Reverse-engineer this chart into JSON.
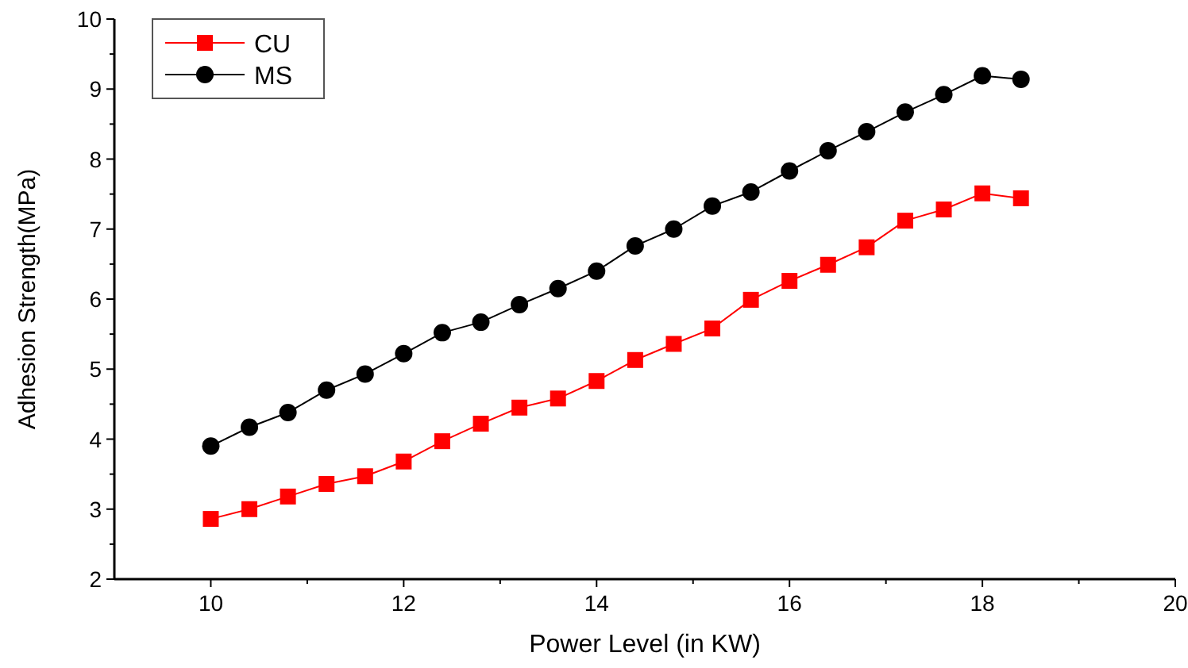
{
  "chart_data": {
    "type": "line",
    "xlabel": "Power Level (in KW)",
    "ylabel": "Adhesion Strength(MPa)",
    "x": [
      10,
      10.4,
      10.8,
      11.2,
      11.6,
      12,
      12.4,
      12.8,
      13.2,
      13.6,
      14,
      14.4,
      14.8,
      15.2,
      15.6,
      16,
      16.4,
      16.8,
      17.2,
      17.6,
      18,
      18.4
    ],
    "series": [
      {
        "name": "CU",
        "color": "#ff0000",
        "marker": "square",
        "values": [
          2.86,
          3.0,
          3.18,
          3.36,
          3.47,
          3.68,
          3.97,
          4.22,
          4.45,
          4.58,
          4.83,
          5.13,
          5.36,
          5.58,
          5.99,
          6.26,
          6.49,
          6.74,
          7.12,
          7.28,
          7.51,
          7.44
        ]
      },
      {
        "name": "MS",
        "color": "#000000",
        "marker": "circle",
        "values": [
          3.9,
          4.17,
          4.38,
          4.7,
          4.93,
          5.22,
          5.52,
          5.67,
          5.92,
          6.15,
          6.4,
          6.76,
          7.0,
          7.33,
          7.53,
          7.83,
          8.12,
          8.39,
          8.67,
          8.92,
          9.19,
          9.14
        ]
      }
    ],
    "xlim": [
      9,
      20
    ],
    "xticks": [
      10,
      {
        "value": 11,
        "label": null
      },
      12,
      {
        "value": 13,
        "label": null
      },
      14,
      {
        "value": 15,
        "label": null
      },
      16,
      {
        "value": 17,
        "label": null
      },
      18,
      {
        "value": 19,
        "label": null
      },
      20
    ],
    "ylim": [
      2,
      10
    ],
    "yticks": [
      2,
      {
        "value": 2.5,
        "label": null
      },
      3,
      {
        "value": 3.5,
        "label": null
      },
      4,
      {
        "value": 4.5,
        "label": null
      },
      5,
      {
        "value": 5.5,
        "label": null
      },
      6,
      {
        "value": 6.5,
        "label": null
      },
      7,
      {
        "value": 7.5,
        "label": null
      },
      8,
      {
        "value": 8.5,
        "label": null
      },
      9,
      {
        "value": 9.5,
        "label": null
      },
      10
    ],
    "legend": "top left",
    "grid": false,
    "line_style": "solid"
  }
}
